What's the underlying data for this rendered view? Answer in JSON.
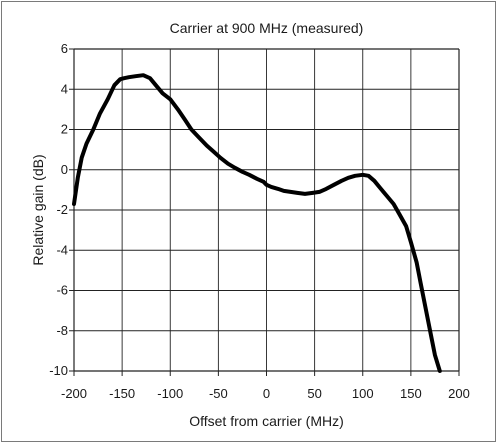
{
  "chart_data": {
    "type": "line",
    "title": "Carrier at 900 MHz (measured)",
    "xlabel": "Offset from carrier (MHz)",
    "ylabel": "Relative gain (dB)",
    "xlim": [
      -200,
      200
    ],
    "ylim": [
      -10,
      6
    ],
    "xticks": [
      -200,
      -150,
      -100,
      -50,
      0,
      50,
      100,
      150,
      200
    ],
    "yticks": [
      6,
      4,
      2,
      0,
      -2,
      -4,
      -6,
      -8,
      -10
    ],
    "grid": true,
    "colors": {
      "line": "#000000",
      "grid": "#222222"
    },
    "series": [
      {
        "x": [
          -200,
          -196,
          -192,
          -187,
          -180,
          -173,
          -165,
          -158,
          -152,
          -148,
          -143,
          -136,
          -128,
          -121,
          -115,
          -108,
          -100,
          -92,
          -85,
          -78,
          -70,
          -62,
          -55,
          -48,
          -40,
          -33,
          -25,
          -18,
          -10,
          -3,
          0,
          5,
          12,
          18,
          25,
          32,
          40,
          48,
          55,
          62,
          70,
          78,
          85,
          92,
          100,
          106,
          112,
          118,
          125,
          132,
          138,
          145,
          150,
          156,
          160,
          165,
          170,
          175,
          180
        ],
        "y": [
          -1.7,
          -0.4,
          0.6,
          1.3,
          2.0,
          2.8,
          3.5,
          4.2,
          4.5,
          4.55,
          4.6,
          4.65,
          4.7,
          4.55,
          4.2,
          3.8,
          3.5,
          3.0,
          2.5,
          2.0,
          1.6,
          1.2,
          0.9,
          0.6,
          0.3,
          0.1,
          -0.1,
          -0.25,
          -0.45,
          -0.6,
          -0.75,
          -0.85,
          -0.95,
          -1.05,
          -1.1,
          -1.15,
          -1.2,
          -1.15,
          -1.1,
          -0.95,
          -0.75,
          -0.55,
          -0.4,
          -0.3,
          -0.25,
          -0.3,
          -0.55,
          -0.9,
          -1.3,
          -1.7,
          -2.2,
          -2.8,
          -3.6,
          -4.6,
          -5.6,
          -6.8,
          -8.0,
          -9.2,
          -10.0
        ]
      }
    ]
  }
}
